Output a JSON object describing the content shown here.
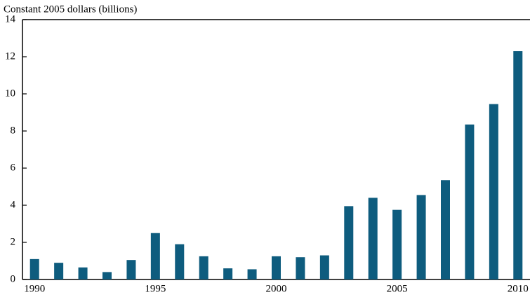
{
  "chart_data": {
    "type": "bar",
    "y_axis_label": "Constant 2005 dollars (billions)",
    "x": [
      1990,
      1991,
      1992,
      1993,
      1994,
      1995,
      1996,
      1997,
      1998,
      1999,
      2000,
      2001,
      2002,
      2003,
      2004,
      2005,
      2006,
      2007,
      2008,
      2009,
      2010
    ],
    "values": [
      1.1,
      0.9,
      0.65,
      0.4,
      1.05,
      2.5,
      1.9,
      1.25,
      0.6,
      0.55,
      1.25,
      1.2,
      1.3,
      3.95,
      4.4,
      3.75,
      4.55,
      5.35,
      8.35,
      9.45,
      12.3
    ],
    "color": "#0e5c7e",
    "xlim": [
      1989.5,
      2010.5
    ],
    "xticks": [
      1990,
      1995,
      2000,
      2005,
      2010
    ],
    "ylim": [
      0,
      14
    ],
    "yticks": [
      0,
      2,
      4,
      6,
      8,
      10,
      12,
      14
    ],
    "grid": false
  }
}
